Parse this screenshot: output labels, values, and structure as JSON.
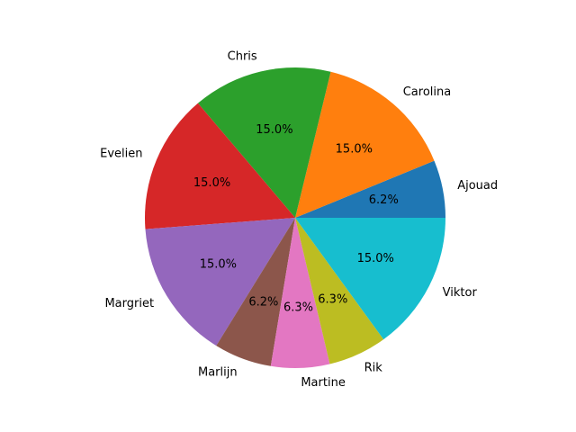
{
  "chart_data": {
    "type": "pie",
    "title": "",
    "start_angle_deg": 0,
    "direction": "counterclockwise",
    "slices": [
      {
        "label": "Ajouad",
        "pct_label": "6.2%",
        "value": 6.2,
        "color": "#1f77b4"
      },
      {
        "label": "Carolina",
        "pct_label": "15.0%",
        "value": 15.0,
        "color": "#ff7f0e"
      },
      {
        "label": "Chris",
        "pct_label": "15.0%",
        "value": 15.0,
        "color": "#2ca02c"
      },
      {
        "label": "Evelien",
        "pct_label": "15.0%",
        "value": 15.0,
        "color": "#d62728"
      },
      {
        "label": "Margriet",
        "pct_label": "15.0%",
        "value": 15.0,
        "color": "#9467bd"
      },
      {
        "label": "Marlijn",
        "pct_label": "6.2%",
        "value": 6.2,
        "color": "#8c564b"
      },
      {
        "label": "Martine",
        "pct_label": "6.3%",
        "value": 6.3,
        "color": "#e377c2"
      },
      {
        "label": "Rik",
        "pct_label": "6.3%",
        "value": 6.3,
        "color": "#bcbd22"
      },
      {
        "label": "Viktor",
        "pct_label": "15.0%",
        "value": 15.0,
        "color": "#17becf"
      }
    ]
  }
}
